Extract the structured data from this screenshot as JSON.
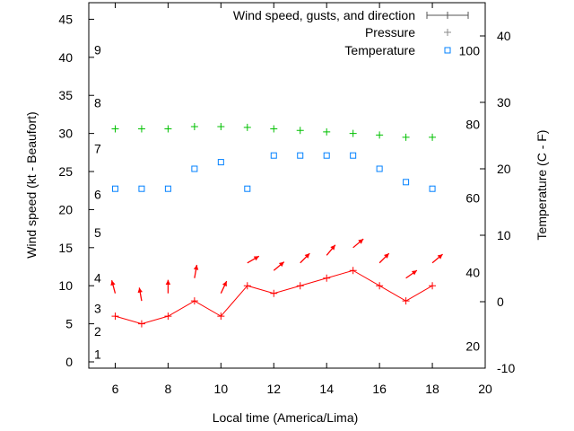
{
  "chart_data": {
    "type": "line",
    "xlabel": "Local time (America/Lima)",
    "ylabel": "Wind speed (kt - Beaufort)",
    "y2label": "Temperature (C - F)",
    "xlim": [
      5,
      20
    ],
    "ylim": [
      0,
      48
    ],
    "y2lim": [
      -10,
      45
    ],
    "xticks": [
      6,
      8,
      10,
      12,
      14,
      16,
      18,
      20
    ],
    "yticks": [
      0,
      5,
      10,
      15,
      20,
      25,
      30,
      35,
      40,
      45
    ],
    "y2ticks": [
      -10,
      0,
      10,
      20,
      30,
      40
    ],
    "beaufort": [
      {
        "label": "1",
        "kt": 1
      },
      {
        "label": "2",
        "kt": 4
      },
      {
        "label": "3",
        "kt": 7
      },
      {
        "label": "4",
        "kt": 11
      },
      {
        "label": "5",
        "kt": 17
      },
      {
        "label": "6",
        "kt": 22
      },
      {
        "label": "7",
        "kt": 28
      },
      {
        "label": "8",
        "kt": 34
      },
      {
        "label": "9",
        "kt": 41
      }
    ],
    "fahrenheit": [
      {
        "label": "20",
        "c": -6.7
      },
      {
        "label": "40",
        "c": 4.4
      },
      {
        "label": "60",
        "c": 15.6
      },
      {
        "label": "80",
        "c": 26.7
      },
      {
        "label": "100",
        "c": 37.8
      }
    ],
    "x": [
      6,
      7,
      8,
      9,
      10,
      11,
      12,
      13,
      14,
      15,
      16,
      17,
      18
    ],
    "series": [
      {
        "name": "Wind speed, gusts, and direction",
        "color": "#ff0000",
        "values": [
          6,
          5,
          6,
          8,
          6,
          10,
          9,
          10,
          11,
          12,
          10,
          8,
          10
        ],
        "direction_toward_deg": [
          -15,
          -10,
          0,
          10,
          25,
          60,
          50,
          45,
          40,
          50,
          45,
          55,
          50
        ]
      },
      {
        "name": "Pressure",
        "color": "#00c000",
        "values": [
          30.6,
          30.6,
          30.6,
          30.9,
          30.9,
          30.8,
          30.6,
          30.4,
          30.2,
          30.0,
          29.8,
          29.5,
          29.5
        ]
      },
      {
        "name": "Temperature",
        "color": "#0080ff",
        "axis": "y2",
        "values": [
          17,
          17,
          17,
          20,
          21,
          17,
          22,
          22,
          22,
          22,
          20,
          18,
          17
        ]
      }
    ],
    "legend": "top-right"
  }
}
